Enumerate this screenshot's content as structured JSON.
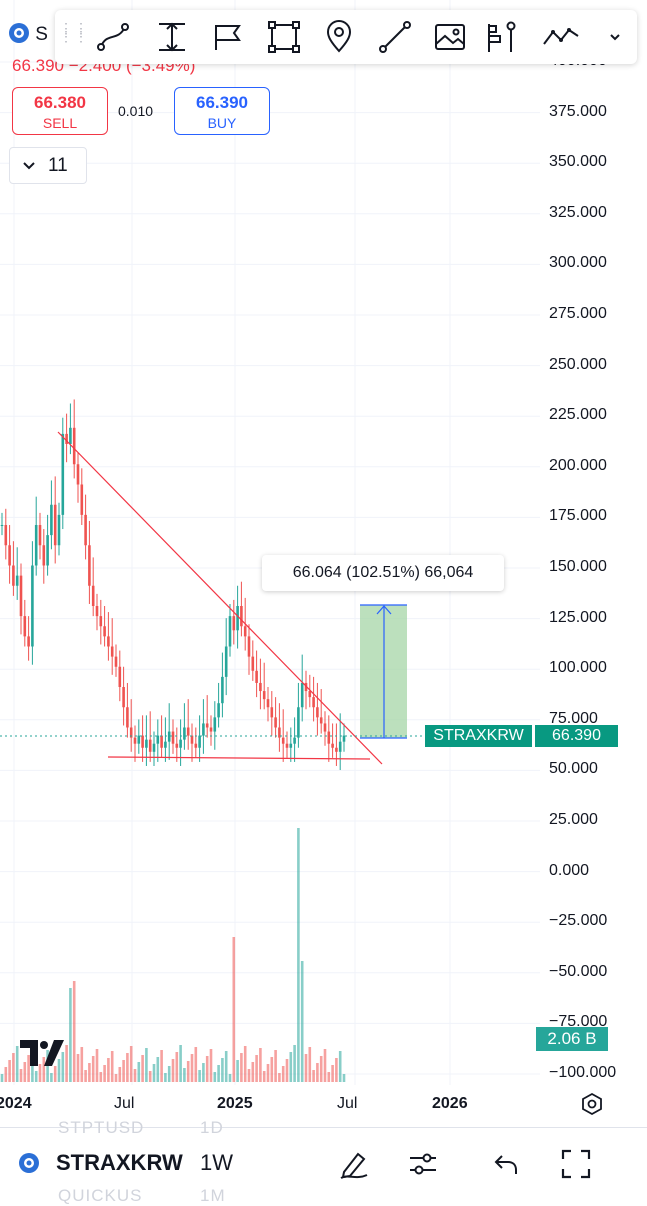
{
  "header": {
    "symbol_short": "S",
    "last_price": "66.390",
    "change": "−2.400",
    "change_pct": "(−3.49%)"
  },
  "toolbar": {
    "tools": [
      {
        "name": "trendline-tool",
        "icon": "curve-icon"
      },
      {
        "name": "text-tool",
        "icon": "text-cursor-icon"
      },
      {
        "name": "flag-tool",
        "icon": "flag-icon"
      },
      {
        "name": "rectangle-tool",
        "icon": "rectangle-icon"
      },
      {
        "name": "pin-tool",
        "icon": "map-pin-icon"
      },
      {
        "name": "line-tool",
        "icon": "line-icon"
      },
      {
        "name": "image-tool",
        "icon": "image-icon"
      },
      {
        "name": "long-position-tool",
        "icon": "position-icon"
      },
      {
        "name": "path-tool",
        "icon": "path-icon"
      }
    ],
    "more": "chevron-down-icon"
  },
  "trade": {
    "sell_price": "66.380",
    "sell_label": "SELL",
    "spread": "0.010",
    "buy_price": "66.390",
    "buy_label": "BUY"
  },
  "indicators": {
    "count": "11"
  },
  "measure_label": "66.064 (102.51%) 66,064",
  "price_axis": [
    "400.000",
    "375.000",
    "350.000",
    "325.000",
    "300.000",
    "275.000",
    "250.000",
    "225.000",
    "200.000",
    "175.000",
    "150.000",
    "125.000",
    "100.000",
    "75.000",
    "50.000",
    "25.000",
    "0.000",
    "−25.000",
    "−50.000",
    "−75.000",
    "−100.000"
  ],
  "time_axis": [
    {
      "label": "2024",
      "bold": true
    },
    {
      "label": "Jul",
      "bold": false
    },
    {
      "label": "2025",
      "bold": true
    },
    {
      "label": "Jul",
      "bold": false
    },
    {
      "label": "2026",
      "bold": true
    }
  ],
  "last_price_tag": {
    "ticker": "STRAXKRW",
    "price": "66.390"
  },
  "volume_tag": "2.06 B",
  "bottom": {
    "symbol": "STRAXKRW",
    "timeframe": "1W",
    "ghost_above_symbol": "STPTUSD",
    "ghost_above_tf": "1D",
    "ghost_below_symbol": "QUICKUS",
    "ghost_below_tf": "1M"
  },
  "colors": {
    "up": "#26a69a",
    "down": "#ef5350",
    "trend": "#f23645",
    "target_fill": "#a5d6a7",
    "target_line": "#2962ff"
  }
}
